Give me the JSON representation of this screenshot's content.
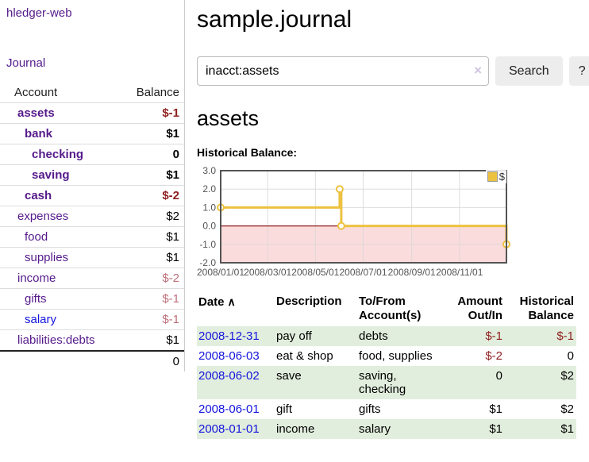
{
  "sidebar": {
    "app_title": "hledger-web",
    "journal_link": "Journal",
    "accounts_table": {
      "account_header": "Account",
      "balance_header": "Balance",
      "rows": [
        {
          "name": "assets",
          "indent": 1,
          "bold": true,
          "balance": "$-1",
          "negative": "strong",
          "link_color": "purple"
        },
        {
          "name": "bank",
          "indent": 2,
          "bold": true,
          "balance": "$1",
          "negative": null,
          "link_color": "purple"
        },
        {
          "name": "checking",
          "indent": 3,
          "bold": true,
          "balance": "0",
          "negative": null,
          "link_color": "purple"
        },
        {
          "name": "saving",
          "indent": 3,
          "bold": true,
          "balance": "$1",
          "negative": null,
          "link_color": "purple"
        },
        {
          "name": "cash",
          "indent": 2,
          "bold": true,
          "balance": "$-2",
          "negative": "strong",
          "link_color": "purple"
        },
        {
          "name": "expenses",
          "indent": 1,
          "bold": false,
          "balance": "$2",
          "negative": null,
          "link_color": "purple"
        },
        {
          "name": "food",
          "indent": 2,
          "bold": false,
          "balance": "$1",
          "negative": null,
          "link_color": "purple"
        },
        {
          "name": "supplies",
          "indent": 2,
          "bold": false,
          "balance": "$1",
          "negative": null,
          "link_color": "purple"
        },
        {
          "name": "income",
          "indent": 1,
          "bold": false,
          "balance": "$-2",
          "negative": "soft",
          "link_color": "purple"
        },
        {
          "name": "gifts",
          "indent": 2,
          "bold": false,
          "balance": "$-1",
          "negative": "soft",
          "link_color": "purple"
        },
        {
          "name": "salary",
          "indent": 2,
          "bold": false,
          "balance": "$-1",
          "negative": "soft",
          "link_color": "blue"
        },
        {
          "name": "liabilities:debts",
          "indent": 1,
          "bold": false,
          "balance": "$1",
          "negative": null,
          "link_color": "purple"
        }
      ],
      "total": "0"
    }
  },
  "header": {
    "title": "sample.journal"
  },
  "search": {
    "query": "inacct:assets",
    "clear_icon": "×",
    "search_button_label": "Search",
    "help_button_label": "?"
  },
  "account_page": {
    "title": "assets",
    "chart_label": "Historical Balance:"
  },
  "chart_data": {
    "type": "line",
    "step": true,
    "title": "Historical Balance:",
    "series": [
      {
        "name": "$",
        "color": "#edc240",
        "points": [
          [
            "2008-01-01",
            1
          ],
          [
            "2008-06-01",
            2
          ],
          [
            "2008-06-03",
            0
          ],
          [
            "2008-12-31",
            -1
          ]
        ]
      }
    ],
    "x_ticks": [
      "2008/01/01",
      "2008/03/01",
      "2008/05/01",
      "2008/07/01",
      "2008/09/01",
      "2008/11/01"
    ],
    "y_ticks": [
      3.0,
      2.0,
      1.0,
      0.0,
      -1.0,
      -2.0
    ],
    "xlim": [
      "2008-01-01",
      "2008-12-31"
    ],
    "ylim": [
      -2,
      3
    ],
    "grid": true,
    "legend_position": "top-right",
    "negative_region_color": "#fbdcdc",
    "zero_line_color": "#8e1f1f",
    "gridline_color": "#d8d8d8",
    "border_color": "#545454"
  },
  "register_table": {
    "headers": {
      "date": "Date",
      "description": "Description",
      "accounts": "To/From Account(s)",
      "amount": "Amount Out/In",
      "balance": "Historical Balance"
    },
    "sort": {
      "column": "date",
      "direction": "ascending",
      "icon": "∧"
    },
    "rows": [
      {
        "date": "2008-12-31",
        "description": "pay off",
        "accounts": "debts",
        "amount": "$-1",
        "balance": "$-1"
      },
      {
        "date": "2008-06-03",
        "description": "eat & shop",
        "accounts": "food, supplies",
        "amount": "$-2",
        "balance": "0"
      },
      {
        "date": "2008-06-02",
        "description": "save",
        "accounts": "saving, checking",
        "amount": "0",
        "balance": "$2"
      },
      {
        "date": "2008-06-01",
        "description": "gift",
        "accounts": "gifts",
        "amount": "$1",
        "balance": "$2"
      },
      {
        "date": "2008-01-01",
        "description": "income",
        "accounts": "salary",
        "amount": "$1",
        "balance": "$1"
      }
    ]
  },
  "colors": {
    "link_purple": "#551a8b",
    "link_blue": "#1414dd",
    "negative_strong": "#8e1f1f",
    "negative_soft": "#bf6f7a",
    "row_highlight_green": "#e2eedd",
    "chart_line_gold": "#edc240"
  }
}
